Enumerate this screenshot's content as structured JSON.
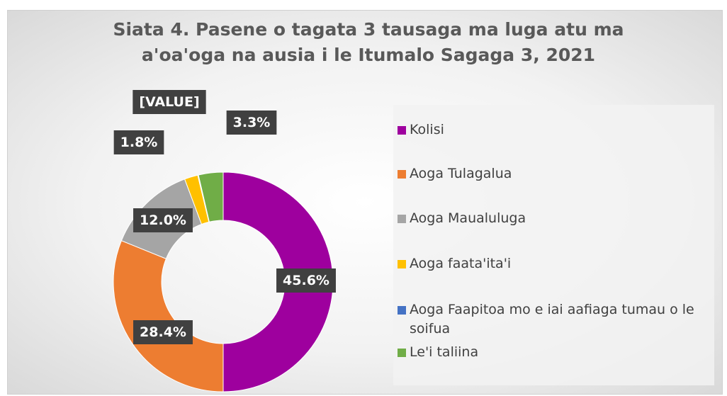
{
  "chart_data": {
    "type": "donut",
    "title": "Siata 4. Pasene o tagata 3 tausaga ma luga atu ma a'oa'oga na ausia i le Itumalo Sagaga 3, 2021",
    "categories": [
      "Kolisi",
      "Aoga Tulagalua",
      "Aoga Maualuluga",
      "Aoga faata'ita'i",
      "Aoga Faapitoa mo e iai aafiaga tumau o le soifua",
      "Le'i taliina"
    ],
    "values": [
      45.6,
      28.4,
      12.0,
      1.8,
      0.1,
      3.3
    ],
    "value_labels": [
      "45.6%",
      "28.4%",
      "12.0%",
      "1.8%",
      "[VALUE]",
      "3.3%"
    ],
    "colors": [
      "#9e009e",
      "#ed7d31",
      "#a5a5a5",
      "#ffc000",
      "#4472c4",
      "#70ad47"
    ],
    "legend": "right"
  }
}
